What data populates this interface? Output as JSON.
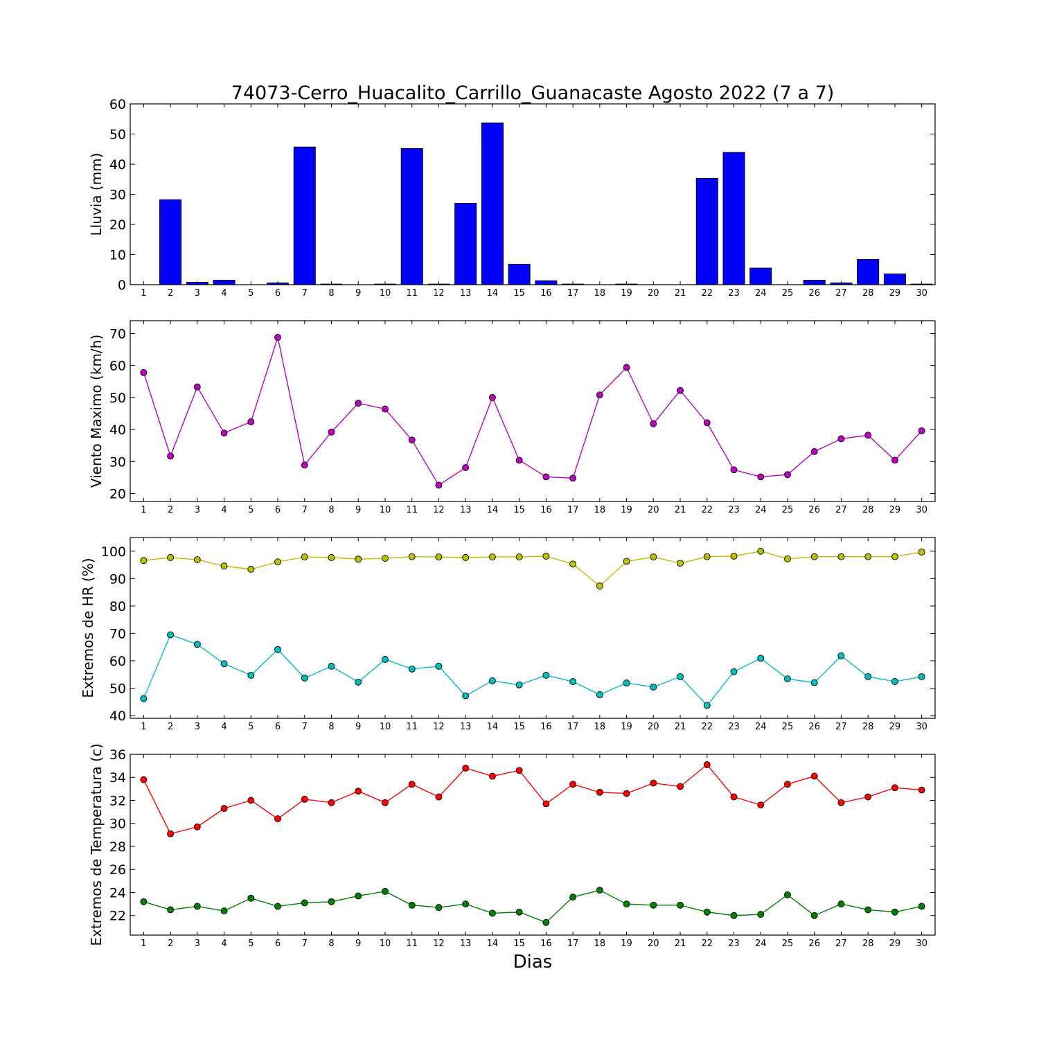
{
  "title": "74073-Cerro_Huacalito_Carrillo_Guanacaste Agosto 2022  (7 a 7)",
  "xlabel": "Dias",
  "chart_data": [
    {
      "id": "lluvia",
      "type": "bar",
      "ylabel": "Lluvia (mm)",
      "ylim": [
        0,
        60
      ],
      "yticks": [
        0,
        10,
        20,
        30,
        40,
        50,
        60
      ],
      "x": [
        1,
        2,
        3,
        4,
        5,
        6,
        7,
        8,
        9,
        10,
        11,
        12,
        13,
        14,
        15,
        16,
        17,
        18,
        19,
        20,
        21,
        22,
        23,
        24,
        25,
        26,
        27,
        28,
        29,
        30
      ],
      "series": [
        {
          "values": [
            0,
            28.2,
            0.8,
            1.5,
            0,
            0.6,
            45.7,
            0.2,
            0,
            0.2,
            45.2,
            0.2,
            27,
            53.7,
            6.8,
            1.3,
            0.2,
            0,
            0.2,
            0,
            0,
            35.3,
            43.9,
            5.5,
            0,
            1.5,
            0.6,
            8.4,
            3.6,
            0.2
          ],
          "color": "#0000ff"
        }
      ]
    },
    {
      "id": "viento",
      "type": "line",
      "ylabel": "Viento Maximo (km/h)",
      "ylim": [
        17.5,
        74
      ],
      "yticks": [
        20,
        30,
        40,
        50,
        60,
        70
      ],
      "x": [
        1,
        2,
        3,
        4,
        5,
        6,
        7,
        8,
        9,
        10,
        11,
        12,
        13,
        14,
        15,
        16,
        17,
        18,
        19,
        20,
        21,
        22,
        23,
        24,
        25,
        26,
        27,
        28,
        29,
        30
      ],
      "series": [
        {
          "values": [
            57.8,
            31.7,
            53.3,
            38.9,
            42.4,
            68.8,
            28.9,
            39.2,
            48.2,
            46.4,
            36.7,
            22.6,
            28.1,
            50.0,
            30.4,
            25.2,
            24.8,
            50.8,
            59.4,
            41.8,
            52.2,
            42.1,
            27.4,
            25.2,
            25.9,
            33.1,
            37.1,
            38.2,
            30.4,
            39.6
          ],
          "color": "#bf00bf"
        }
      ]
    },
    {
      "id": "hr",
      "type": "line",
      "ylabel": "Extremos de HR (%)",
      "ylim": [
        39,
        105
      ],
      "yticks": [
        40,
        50,
        60,
        70,
        80,
        90,
        100
      ],
      "x": [
        1,
        2,
        3,
        4,
        5,
        6,
        7,
        8,
        9,
        10,
        11,
        12,
        13,
        14,
        15,
        16,
        17,
        18,
        19,
        20,
        21,
        22,
        23,
        24,
        25,
        26,
        27,
        28,
        29,
        30
      ],
      "series": [
        {
          "values": [
            96.6,
            97.7,
            96.9,
            94.6,
            93.4,
            96.1,
            97.9,
            97.7,
            97.1,
            97.4,
            98.0,
            97.9,
            97.7,
            97.9,
            97.9,
            98.2,
            95.3,
            87.3,
            96.3,
            97.9,
            95.6,
            98.0,
            98.2,
            100.0,
            97.2,
            98.0,
            98.0,
            98.0,
            98.0,
            99.7
          ],
          "color": "#bfbf00"
        },
        {
          "values": [
            46.2,
            69.5,
            66.0,
            58.9,
            54.7,
            64.1,
            53.7,
            58.0,
            52.2,
            60.5,
            57.0,
            58.0,
            47.2,
            52.7,
            51.2,
            54.7,
            52.4,
            47.6,
            51.9,
            50.4,
            54.2,
            43.7,
            56.0,
            60.9,
            53.4,
            52.0,
            61.8,
            54.2,
            52.4,
            54.2
          ],
          "color": "#00bfbf"
        }
      ]
    },
    {
      "id": "temperatura",
      "type": "line",
      "ylabel": "Extremos de Temperatura (c)",
      "ylim": [
        20.3,
        36
      ],
      "yticks": [
        22,
        24,
        26,
        28,
        30,
        32,
        34,
        36
      ],
      "x": [
        1,
        2,
        3,
        4,
        5,
        6,
        7,
        8,
        9,
        10,
        11,
        12,
        13,
        14,
        15,
        16,
        17,
        18,
        19,
        20,
        21,
        22,
        23,
        24,
        25,
        26,
        27,
        28,
        29,
        30
      ],
      "series": [
        {
          "values": [
            33.8,
            29.1,
            29.7,
            31.3,
            32.0,
            30.4,
            32.1,
            31.8,
            32.8,
            31.8,
            33.4,
            32.3,
            34.8,
            34.1,
            34.6,
            31.7,
            33.4,
            32.7,
            32.6,
            33.5,
            33.2,
            35.1,
            32.3,
            31.6,
            33.4,
            34.1,
            31.8,
            32.3,
            33.1,
            32.9
          ],
          "color": "#ff0000"
        },
        {
          "values": [
            23.2,
            22.5,
            22.8,
            22.4,
            23.5,
            22.8,
            23.1,
            23.2,
            23.7,
            24.1,
            22.9,
            22.7,
            23.0,
            22.2,
            22.3,
            21.4,
            23.6,
            24.2,
            23.0,
            22.9,
            22.9,
            22.3,
            22.0,
            22.1,
            23.8,
            22.0,
            23.0,
            22.5,
            22.3,
            22.8
          ],
          "color": "#008000"
        }
      ]
    }
  ]
}
